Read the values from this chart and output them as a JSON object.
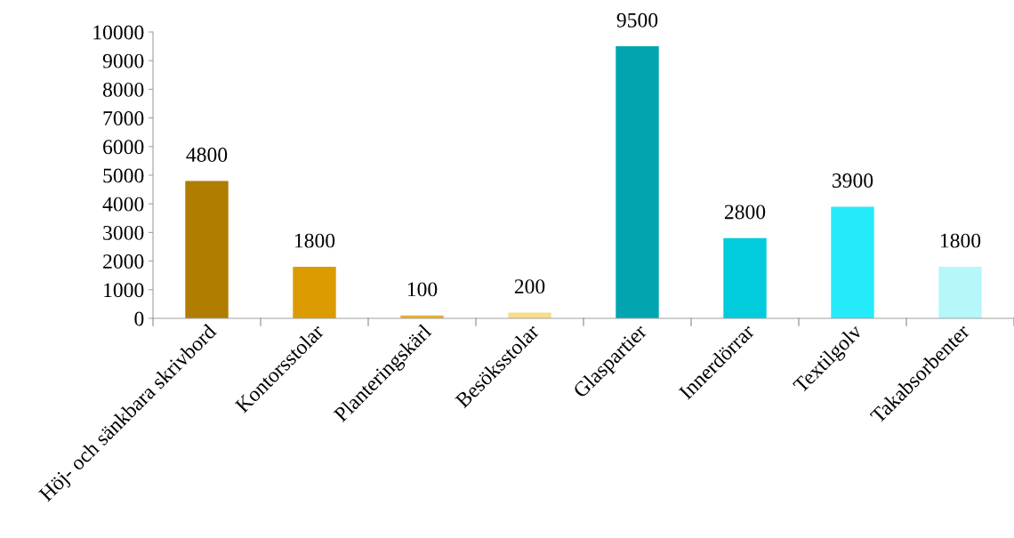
{
  "chart_data": {
    "type": "bar",
    "categories": [
      "Höj- och sänkbara skrivbord",
      "Kontorsstolar",
      "Planteringskärl",
      "Besöksstolar",
      "Glaspartier",
      "Innerdörrar",
      "Textilgolv",
      "Takabsorbenter"
    ],
    "values": [
      4800,
      1800,
      100,
      200,
      9500,
      2800,
      3900,
      1800
    ],
    "colors": [
      "#b07d00",
      "#dc9b00",
      "#e8b030",
      "#f9dc8c",
      "#00a5b0",
      "#00ccdc",
      "#25eafa",
      "#b5f7fb"
    ],
    "ylim": [
      0,
      10000
    ],
    "yticks": [
      0,
      1000,
      2000,
      3000,
      4000,
      5000,
      6000,
      7000,
      8000,
      9000,
      10000
    ],
    "data_labels": true,
    "grid": false,
    "legend": false
  }
}
